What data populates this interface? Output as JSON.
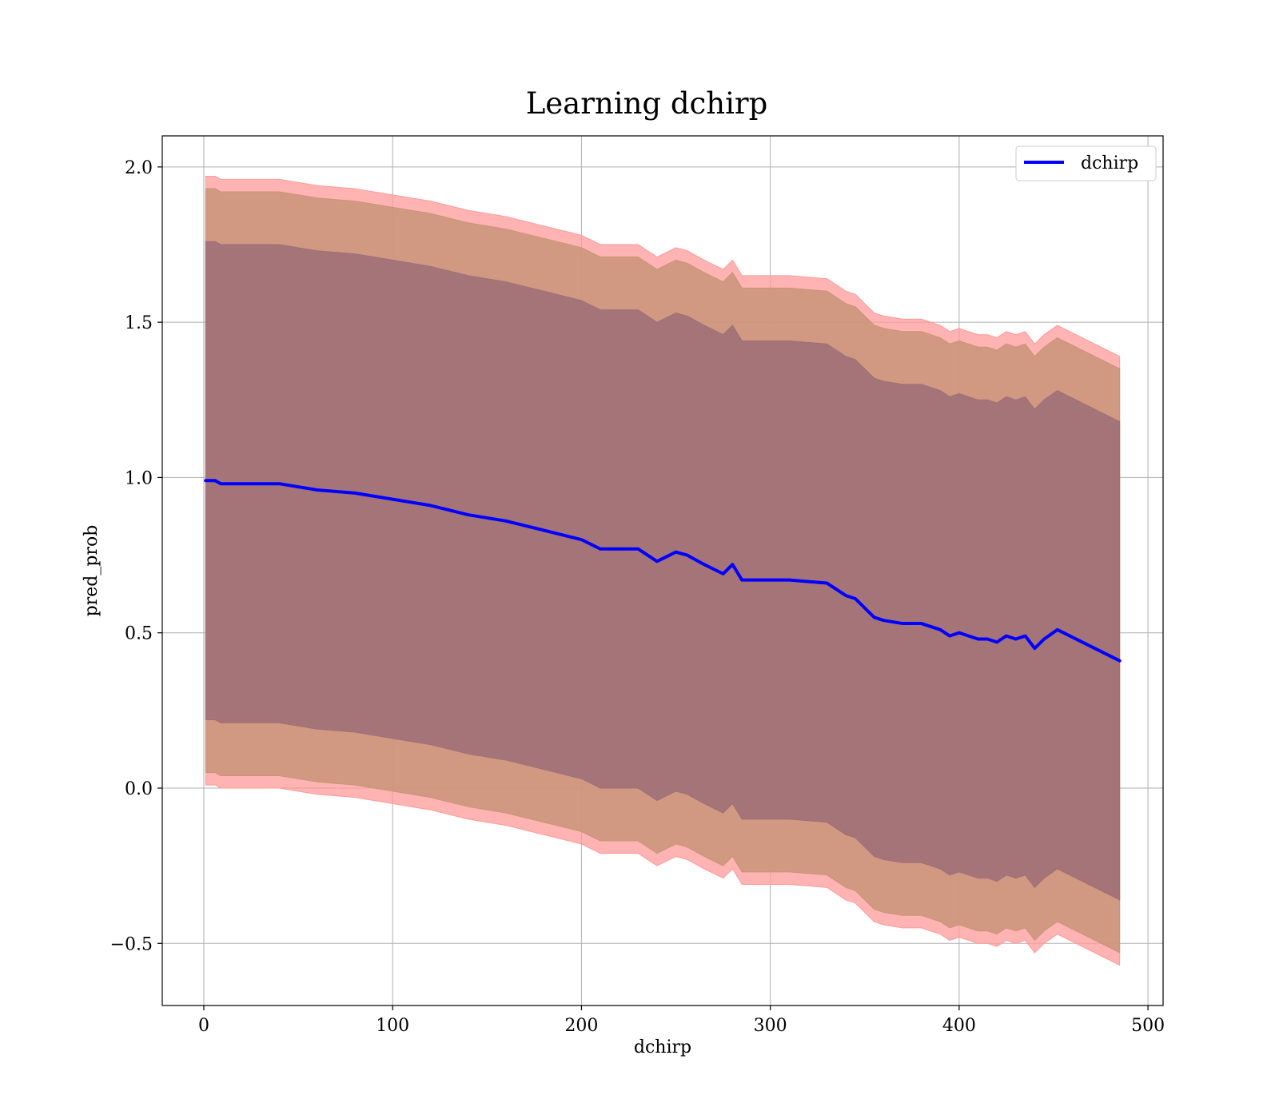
{
  "chart_data": {
    "type": "line",
    "title": "Learning dchirp",
    "xlabel": "dchirp",
    "ylabel": "pred_prob",
    "xlim": [
      -22,
      508
    ],
    "ylim": [
      -0.7,
      2.1
    ],
    "x_ticks": [
      0,
      100,
      200,
      300,
      400,
      500
    ],
    "x_tick_labels": [
      "0",
      "100",
      "200",
      "300",
      "400",
      "500"
    ],
    "y_ticks": [
      -0.5,
      0.0,
      0.5,
      1.0,
      1.5,
      2.0
    ],
    "y_tick_labels": [
      "−0.5",
      "0.0",
      "0.5",
      "1.0",
      "1.5",
      "2.0"
    ],
    "grid": true,
    "legend": {
      "position": "top-right",
      "entries": [
        "dchirp"
      ]
    },
    "colors": {
      "line": "#0000ff",
      "band_outer": "#ff9a9a",
      "band_middle": "#c99479",
      "band_inner": "#a07078"
    },
    "series": [
      {
        "name": "dchirp",
        "x": [
          1,
          6,
          9,
          20,
          40,
          60,
          80,
          100,
          120,
          140,
          160,
          180,
          200,
          210,
          220,
          230,
          240,
          250,
          256,
          265,
          275,
          280,
          285,
          295,
          300,
          310,
          330,
          340,
          345,
          350,
          355,
          360,
          370,
          380,
          390,
          395,
          400,
          405,
          410,
          415,
          420,
          425,
          430,
          435,
          440,
          445,
          452,
          485
        ],
        "values": [
          0.99,
          0.99,
          0.98,
          0.98,
          0.98,
          0.96,
          0.95,
          0.93,
          0.91,
          0.88,
          0.86,
          0.83,
          0.8,
          0.77,
          0.77,
          0.77,
          0.73,
          0.76,
          0.75,
          0.72,
          0.69,
          0.72,
          0.67,
          0.67,
          0.67,
          0.67,
          0.66,
          0.62,
          0.61,
          0.58,
          0.55,
          0.54,
          0.53,
          0.53,
          0.51,
          0.49,
          0.5,
          0.49,
          0.48,
          0.48,
          0.47,
          0.49,
          0.48,
          0.49,
          0.45,
          0.48,
          0.51,
          0.41
        ]
      }
    ],
    "bands": [
      {
        "label": "outer",
        "upper_offset": 0.98,
        "lower_offset": -0.98
      },
      {
        "label": "middle",
        "upper_offset": 0.94,
        "lower_offset": -0.94
      },
      {
        "label": "inner",
        "upper_offset": 0.77,
        "lower_offset": -0.77
      }
    ]
  }
}
